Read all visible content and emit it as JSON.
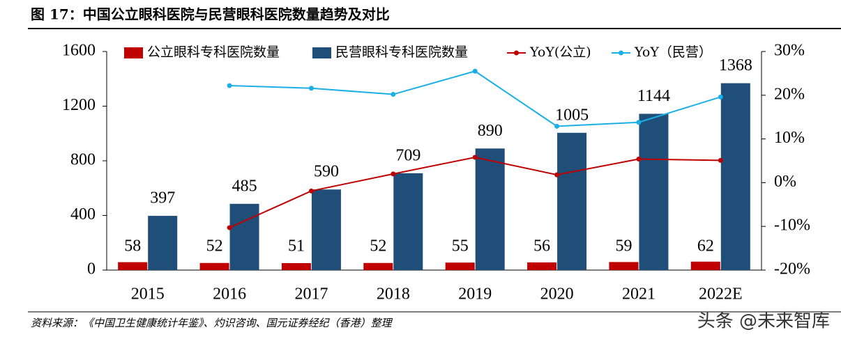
{
  "chart_data": {
    "type": "bar",
    "title": "图 17：中国公立眼科医院与民营眼科医院数量趋势及对比",
    "source": "资料来源：《中国卫生健康统计年鉴》、灼识咨询、国元证券经纪（香港）整理",
    "watermark": "头条 @未来智库",
    "categories": [
      "2015",
      "2016",
      "2017",
      "2018",
      "2019",
      "2020",
      "2021",
      "2022E"
    ],
    "series": [
      {
        "name": "公立眼科专科医院数量",
        "type": "bar",
        "color": "#c00000",
        "values": [
          58,
          52,
          51,
          52,
          55,
          56,
          59,
          62
        ]
      },
      {
        "name": "民营眼科专科医院数量",
        "type": "bar",
        "color": "#1f4e79",
        "values": [
          397,
          485,
          590,
          709,
          890,
          1005,
          1144,
          1368
        ]
      },
      {
        "name": "YoY(公立)",
        "type": "line",
        "axis": "y2",
        "color": "#c00000",
        "values": [
          null,
          -10.3,
          -1.9,
          2.0,
          5.8,
          1.8,
          5.4,
          5.1
        ]
      },
      {
        "name": "YoY（民营）",
        "type": "line",
        "axis": "y2",
        "color": "#1aafe6",
        "values": [
          null,
          22.2,
          21.6,
          20.2,
          25.5,
          12.9,
          13.8,
          19.6
        ]
      }
    ],
    "ylim": [
      0,
      1600
    ],
    "yticks": [
      0,
      400,
      800,
      1200,
      1600
    ],
    "y2lim": [
      -20,
      30
    ],
    "y2ticks": [
      {
        "value": -20,
        "label": "-20%"
      },
      {
        "value": -10,
        "label": "-10%"
      },
      {
        "value": 0,
        "label": "0%"
      },
      {
        "value": 10,
        "label": "10%"
      },
      {
        "value": 20,
        "label": "20%"
      },
      {
        "value": 30,
        "label": "30%"
      }
    ],
    "grid": false
  }
}
